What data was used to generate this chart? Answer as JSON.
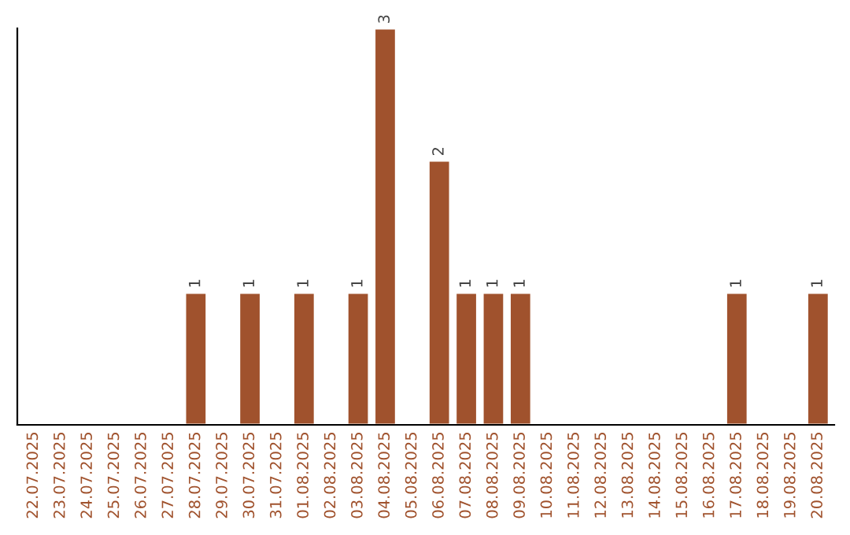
{
  "chart_data": {
    "type": "bar",
    "categories": [
      "22.07.2025",
      "23.07.2025",
      "24.07.2025",
      "25.07.2025",
      "26.07.2025",
      "27.07.2025",
      "28.07.2025",
      "29.07.2025",
      "30.07.2025",
      "31.07.2025",
      "01.08.2025",
      "02.08.2025",
      "03.08.2025",
      "04.08.2025",
      "05.08.2025",
      "06.08.2025",
      "07.08.2025",
      "08.08.2025",
      "09.08.2025",
      "10.08.2025",
      "11.08.2025",
      "12.08.2025",
      "13.08.2025",
      "14.08.2025",
      "15.08.2025",
      "16.08.2025",
      "17.08.2025",
      "18.08.2025",
      "19.08.2025",
      "20.08.2025"
    ],
    "values": [
      null,
      null,
      null,
      null,
      null,
      null,
      1,
      null,
      1,
      null,
      1,
      null,
      1,
      3,
      null,
      2,
      1,
      1,
      1,
      null,
      null,
      null,
      null,
      null,
      null,
      null,
      1,
      null,
      null,
      1
    ],
    "data_labels": true,
    "color": "#a0522d",
    "tick_labels": "x",
    "grid": false,
    "legend": false
  }
}
